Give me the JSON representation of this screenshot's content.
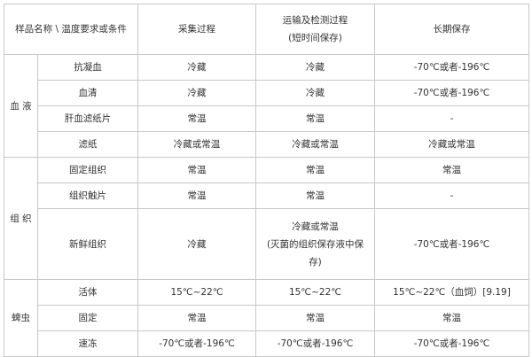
{
  "header": {
    "corner": "样品名称 \\ 温度要求或条件",
    "col_collect": "采集过程",
    "col_transport_line1": "运输及检测过程",
    "col_transport_line2": "(短时间保存)",
    "col_longterm": "长期保存"
  },
  "groups": [
    {
      "name": "血 液",
      "rows": [
        {
          "sample": "抗凝血",
          "collect": "冷藏",
          "transport": "冷藏",
          "longterm": "-70℃或者-196℃"
        },
        {
          "sample": "血清",
          "collect": "冷藏",
          "transport": "冷藏",
          "longterm": "-70℃或者-196℃"
        },
        {
          "sample": "肝血滤纸片",
          "collect": "常温",
          "transport": "常温",
          "longterm": "-"
        },
        {
          "sample": "滤纸",
          "collect": "冷藏或常温",
          "transport": "冷藏或常温",
          "longterm": "冷藏或常温"
        }
      ]
    },
    {
      "name": "组 织",
      "rows": [
        {
          "sample": "固定组织",
          "collect": "常温",
          "transport": "常温",
          "longterm": "常温"
        },
        {
          "sample": "组织触片",
          "collect": "常温",
          "transport": "常温",
          "longterm": "-"
        },
        {
          "sample": "新鲜组织",
          "collect": "冷藏",
          "transport_line1": "冷藏或常温",
          "transport_line2": "(灭菌的组织保存液中保",
          "transport_line3": "存)",
          "longterm": "-70℃或者-196℃"
        }
      ]
    },
    {
      "name": "蜱虫",
      "rows": [
        {
          "sample": "活体",
          "collect": "15℃~22℃",
          "transport": "15℃~22℃",
          "longterm": "15℃~22℃（血饲）[9.19]"
        },
        {
          "sample": "固定",
          "collect": "常温",
          "transport": "常温",
          "longterm": "常温"
        },
        {
          "sample": "速冻",
          "collect": "-70℃或者-196℃",
          "transport": "-70℃或者-196℃",
          "longterm": "-70℃或者-196℃"
        }
      ]
    }
  ]
}
